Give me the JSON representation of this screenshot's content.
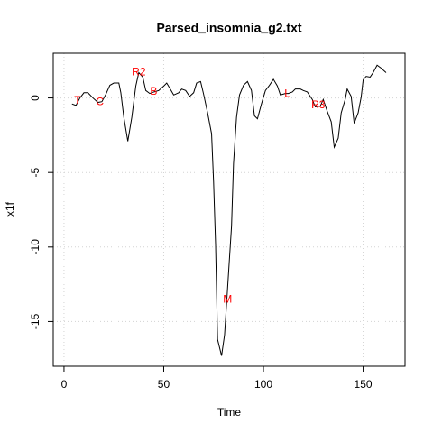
{
  "chart_data": {
    "type": "line",
    "title": "Parsed_insomnia_g2.txt",
    "xlabel": "Time",
    "ylabel": "x1f",
    "x": [
      4,
      6,
      8,
      10,
      12,
      14.5,
      17,
      19,
      21,
      23,
      25,
      27.5,
      28.5,
      30,
      32,
      34,
      36,
      37.5,
      39.5,
      41,
      43,
      45,
      47.5,
      50,
      51.5,
      53.5,
      55,
      57.5,
      59,
      61,
      63,
      65,
      66.5,
      68.5,
      70,
      72,
      74,
      75,
      76,
      77,
      79,
      80.5,
      82,
      84,
      85,
      86.5,
      88,
      90,
      92,
      94,
      95.5,
      97,
      99,
      101,
      103,
      105,
      107,
      108.5,
      111,
      112.5,
      114.5,
      116,
      118.5,
      120,
      122,
      124.5,
      126,
      128.5,
      130,
      132,
      134,
      135.5,
      137.5,
      139,
      141,
      142,
      144,
      145.5,
      147.5,
      149,
      150,
      151.5,
      153.5,
      155,
      157,
      159,
      161.5
    ],
    "values": [
      -0.4,
      -0.5,
      0,
      0.35,
      0.35,
      0,
      -0.3,
      -0.25,
      0.25,
      0.85,
      1.0,
      1.0,
      0.35,
      -1.3,
      -2.9,
      -1.3,
      0.8,
      1.7,
      1.4,
      0.5,
      0.3,
      0.4,
      0.5,
      0.8,
      1.0,
      0.55,
      0.2,
      0.35,
      0.6,
      0.5,
      0.1,
      0.35,
      1.0,
      1.1,
      0.25,
      -1,
      -2.4,
      -5.6,
      -9.8,
      -16.2,
      -17.3,
      -15.9,
      -12.8,
      -8.6,
      -4.4,
      -1.3,
      0.2,
      0.85,
      1.1,
      0.5,
      -1.2,
      -1.4,
      -0.4,
      0.5,
      0.85,
      1.25,
      0.8,
      0.2,
      0.3,
      0.3,
      0.4,
      0.6,
      0.6,
      0.5,
      0.4,
      -0.1,
      -0.6,
      -0.55,
      -0.1,
      -0.9,
      -1.6,
      -3.3,
      -2.7,
      -1.0,
      -0.1,
      0.6,
      0.1,
      -1.7,
      -1.0,
      0.05,
      1.2,
      1.45,
      1.4,
      1.7,
      2.2,
      2.0,
      1.7
    ],
    "color": "#000000",
    "annotations": [
      {
        "text": "T",
        "x": 6.8,
        "y": -0.2
      },
      {
        "text": "C",
        "x": 18,
        "y": -0.3
      },
      {
        "text": "R2",
        "x": 37.5,
        "y": 1.7
      },
      {
        "text": "B",
        "x": 45,
        "y": 0.4
      },
      {
        "text": "M",
        "x": 82,
        "y": -13.55
      },
      {
        "text": "L",
        "x": 112,
        "y": 0.25
      },
      {
        "text": "R3",
        "x": 127.5,
        "y": -0.5
      }
    ],
    "annotation_color": "#ff0000",
    "xlim": [
      -5.4,
      171
    ],
    "ylim": [
      -18,
      3
    ],
    "xticks": [
      0,
      50,
      100,
      150
    ],
    "yticks": [
      -15,
      -10,
      -5,
      0
    ],
    "grid": true
  }
}
